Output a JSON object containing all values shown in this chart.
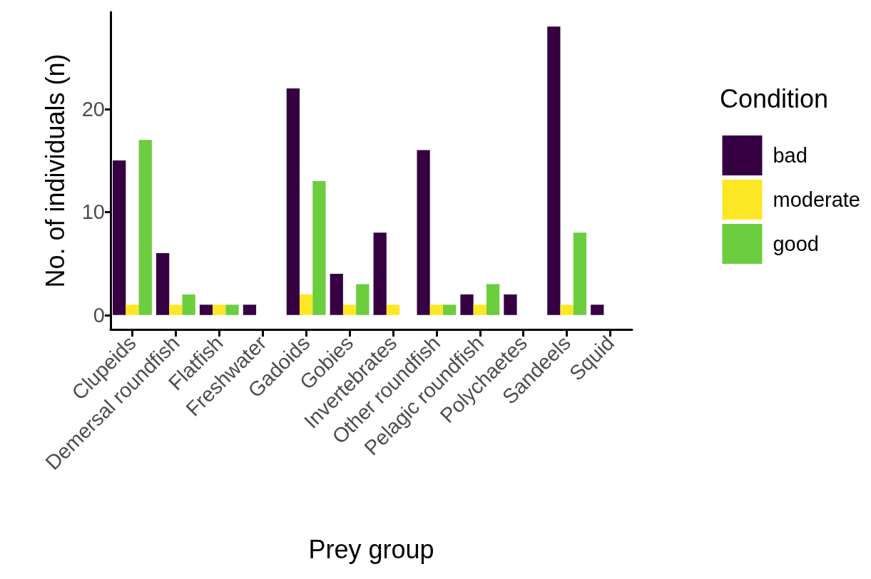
{
  "chart_data": {
    "type": "bar",
    "xlabel": "Prey group",
    "ylabel": "No. of individuals (n)",
    "legend_title": "Condition",
    "categories": [
      "Clupeids",
      "Demersal roundfish",
      "Flatfish",
      "Freshwater",
      "Gadoids",
      "Gobies",
      "Invertebrates",
      "Other roundfish",
      "Pelagic roundfish",
      "Polychaetes",
      "Sandeels",
      "Squid"
    ],
    "series": [
      {
        "name": "bad",
        "color": "#360042",
        "values": [
          15,
          6,
          1,
          1,
          22,
          4,
          8,
          16,
          2,
          2,
          28,
          1
        ]
      },
      {
        "name": "moderate",
        "color": "#fde725",
        "values": [
          1,
          1,
          1,
          null,
          2,
          1,
          1,
          1,
          1,
          null,
          1,
          null
        ]
      },
      {
        "name": "good",
        "color": "#6ccd3f",
        "values": [
          17,
          2,
          1,
          null,
          13,
          3,
          null,
          1,
          3,
          null,
          8,
          null
        ]
      }
    ],
    "ylim": [
      -1.4,
      29.4
    ],
    "yticks": [
      0,
      10,
      20
    ],
    "grid": false,
    "legend": "right"
  }
}
